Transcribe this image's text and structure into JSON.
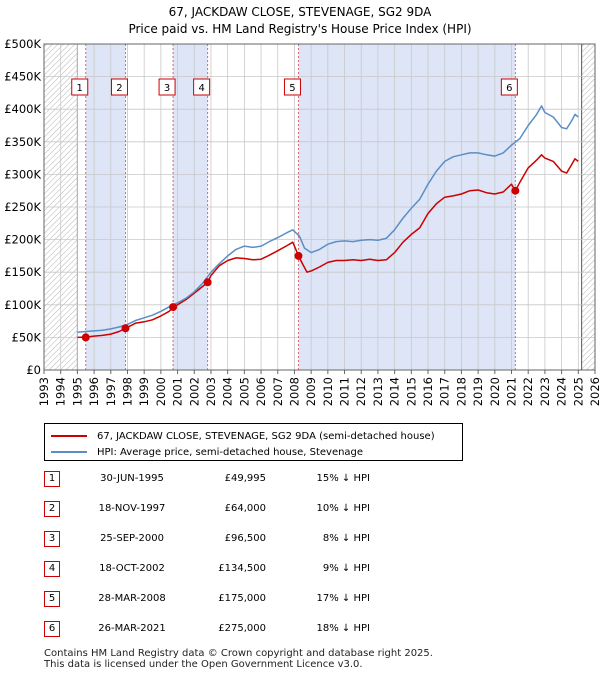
{
  "title_line1": "67, JACKDAW CLOSE, STEVENAGE, SG2 9DA",
  "title_line2": "Price paid vs. HM Land Registry's House Price Index (HPI)",
  "colors": {
    "property": "#cc0000",
    "hpi": "#5b8ec4",
    "shade": "#dde5f7",
    "grid": "#c8c8c8",
    "marker_line": "#e06666"
  },
  "chart_data": {
    "type": "line",
    "xlim": [
      1993,
      2026
    ],
    "ylim": [
      0,
      500000
    ],
    "x_ticks": [
      "1993",
      "1994",
      "1995",
      "1996",
      "1997",
      "1998",
      "1999",
      "2000",
      "2001",
      "2002",
      "2003",
      "2004",
      "2005",
      "2006",
      "2007",
      "2008",
      "2009",
      "2010",
      "2011",
      "2012",
      "2013",
      "2014",
      "2015",
      "2016",
      "2017",
      "2018",
      "2019",
      "2020",
      "2021",
      "2022",
      "2023",
      "2024",
      "2025",
      "2026"
    ],
    "y_ticks": [
      {
        "value": 0,
        "label": "£0"
      },
      {
        "value": 50000,
        "label": "£50K"
      },
      {
        "value": 100000,
        "label": "£100K"
      },
      {
        "value": 150000,
        "label": "£150K"
      },
      {
        "value": 200000,
        "label": "£200K"
      },
      {
        "value": 250000,
        "label": "£250K"
      },
      {
        "value": 300000,
        "label": "£300K"
      },
      {
        "value": 350000,
        "label": "£350K"
      },
      {
        "value": 400000,
        "label": "£400K"
      },
      {
        "value": 450000,
        "label": "£450K"
      },
      {
        "value": 500000,
        "label": "£500K"
      }
    ],
    "hatched_ranges": [
      [
        1993,
        1995.0
      ],
      [
        2025.2,
        2026
      ]
    ],
    "series": [
      {
        "name": "67, JACKDAW CLOSE, STEVENAGE, SG2 9DA (semi-detached house)",
        "key": "property",
        "x": [
          1995.0,
          1995.5,
          1996.0,
          1996.5,
          1997.0,
          1997.5,
          1997.88,
          1998.5,
          1999.0,
          1999.5,
          2000.0,
          2000.5,
          2000.73,
          2001.0,
          2001.5,
          2002.0,
          2002.5,
          2002.8,
          2003.0,
          2003.5,
          2004.0,
          2004.5,
          2005.0,
          2005.5,
          2006.0,
          2006.5,
          2007.0,
          2007.5,
          2007.9,
          2008.24,
          2008.5,
          2008.75,
          2009.0,
          2009.5,
          2010.0,
          2010.5,
          2011.0,
          2011.5,
          2012.0,
          2012.5,
          2013.0,
          2013.5,
          2014.0,
          2014.5,
          2015.0,
          2015.5,
          2016.0,
          2016.5,
          2017.0,
          2017.5,
          2018.0,
          2018.5,
          2019.0,
          2019.5,
          2020.0,
          2020.5,
          2021.0,
          2021.23,
          2021.5,
          2022.0,
          2022.5,
          2022.8,
          2023.0,
          2023.5,
          2024.0,
          2024.3,
          2024.6,
          2024.8,
          2025.0
        ],
        "values": [
          50000,
          50500,
          52000,
          53000,
          55000,
          59000,
          64000,
          72000,
          74000,
          77000,
          83000,
          90000,
          96500,
          100000,
          108000,
          118000,
          128000,
          134500,
          145000,
          160000,
          168000,
          172000,
          171000,
          169000,
          170000,
          176000,
          183000,
          190000,
          196000,
          175000,
          162000,
          150000,
          152000,
          158000,
          165000,
          168000,
          168000,
          169000,
          168000,
          170000,
          168000,
          169000,
          180000,
          196000,
          208000,
          218000,
          240000,
          255000,
          265000,
          267000,
          270000,
          275000,
          276000,
          272000,
          270000,
          273000,
          285000,
          275000,
          288000,
          310000,
          322000,
          330000,
          325000,
          320000,
          305000,
          302000,
          315000,
          324000,
          320000
        ]
      },
      {
        "name": "HPI: Average price, semi-detached house, Stevenage",
        "key": "hpi",
        "x": [
          1995.0,
          1995.5,
          1996.0,
          1996.5,
          1997.0,
          1997.5,
          1998.0,
          1998.5,
          1999.0,
          1999.5,
          2000.0,
          2000.5,
          2001.0,
          2001.5,
          2002.0,
          2002.5,
          2003.0,
          2003.5,
          2004.0,
          2004.5,
          2005.0,
          2005.5,
          2006.0,
          2006.5,
          2007.0,
          2007.5,
          2007.9,
          2008.3,
          2008.6,
          2009.0,
          2009.5,
          2010.0,
          2010.5,
          2011.0,
          2011.5,
          2012.0,
          2012.5,
          2013.0,
          2013.5,
          2014.0,
          2014.5,
          2015.0,
          2015.5,
          2016.0,
          2016.5,
          2017.0,
          2017.5,
          2018.0,
          2018.5,
          2019.0,
          2019.5,
          2020.0,
          2020.5,
          2021.0,
          2021.5,
          2022.0,
          2022.5,
          2022.8,
          2023.0,
          2023.5,
          2024.0,
          2024.3,
          2024.6,
          2024.8,
          2025.0
        ],
        "values": [
          58000,
          59000,
          60000,
          61000,
          63000,
          66000,
          70000,
          76000,
          80000,
          84000,
          90000,
          97000,
          103000,
          110000,
          120000,
          133000,
          150000,
          163000,
          175000,
          185000,
          190000,
          188000,
          190000,
          197000,
          203000,
          210000,
          215000,
          205000,
          187000,
          180000,
          185000,
          193000,
          197000,
          198000,
          197000,
          199000,
          200000,
          199000,
          202000,
          215000,
          233000,
          248000,
          262000,
          285000,
          305000,
          320000,
          327000,
          330000,
          333000,
          333000,
          330000,
          328000,
          333000,
          345000,
          355000,
          375000,
          392000,
          405000,
          395000,
          388000,
          372000,
          370000,
          382000,
          392000,
          388000
        ]
      }
    ],
    "sales": [
      {
        "n": "1",
        "x": 1995.5,
        "value": 49995
      },
      {
        "n": "2",
        "x": 1997.88,
        "value": 64000
      },
      {
        "n": "3",
        "x": 2000.73,
        "value": 96500
      },
      {
        "n": "4",
        "x": 2002.8,
        "value": 134500
      },
      {
        "n": "5",
        "x": 2008.24,
        "value": 175000
      },
      {
        "n": "6",
        "x": 2021.23,
        "value": 275000
      }
    ]
  },
  "legend": {
    "property": "67, JACKDAW CLOSE, STEVENAGE, SG2 9DA (semi-detached house)",
    "hpi": "HPI: Average price, semi-detached house, Stevenage"
  },
  "table": [
    {
      "n": "1",
      "date": "30-JUN-1995",
      "price": "£49,995",
      "hpi": "15% ↓ HPI"
    },
    {
      "n": "2",
      "date": "18-NOV-1997",
      "price": "£64,000",
      "hpi": "10% ↓ HPI"
    },
    {
      "n": "3",
      "date": "25-SEP-2000",
      "price": "£96,500",
      "hpi": "8% ↓ HPI"
    },
    {
      "n": "4",
      "date": "18-OCT-2002",
      "price": "£134,500",
      "hpi": "9% ↓ HPI"
    },
    {
      "n": "5",
      "date": "28-MAR-2008",
      "price": "£175,000",
      "hpi": "17% ↓ HPI"
    },
    {
      "n": "6",
      "date": "26-MAR-2021",
      "price": "£275,000",
      "hpi": "18% ↓ HPI"
    }
  ],
  "footer_line1": "Contains HM Land Registry data © Crown copyright and database right 2025.",
  "footer_line2": "This data is licensed under the Open Government Licence v3.0."
}
